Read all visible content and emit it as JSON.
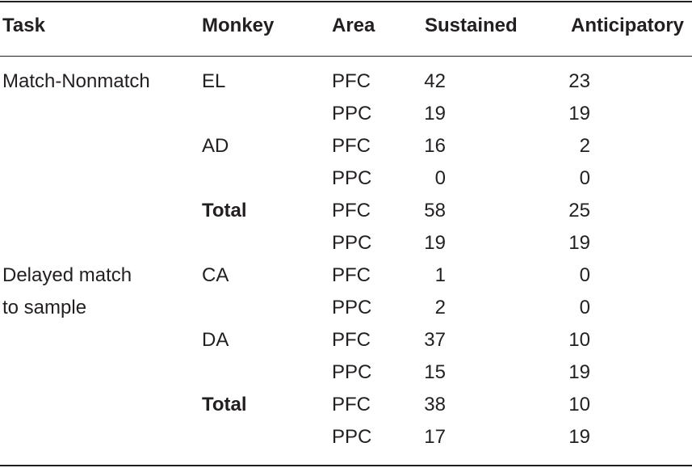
{
  "headers": {
    "task": "Task",
    "monkey": "Monkey",
    "area": "Area",
    "sustained": "Sustained",
    "anticipatory": "Anticipatory"
  },
  "tasks": [
    {
      "line1": "Match-Nonmatch",
      "line2": ""
    },
    {
      "line1": "Delayed match",
      "line2": "to sample"
    }
  ],
  "rows": [
    {
      "task": 0,
      "monkey": "EL",
      "bold": false,
      "area": "PFC",
      "sustained": "42",
      "anticipatory": "23"
    },
    {
      "task": 0,
      "monkey": "",
      "bold": false,
      "area": "PPC",
      "sustained": "19",
      "anticipatory": "19"
    },
    {
      "task": 0,
      "monkey": "AD",
      "bold": false,
      "area": "PFC",
      "sustained": "16",
      "anticipatory": "2"
    },
    {
      "task": 0,
      "monkey": "",
      "bold": false,
      "area": "PPC",
      "sustained": "0",
      "anticipatory": "0"
    },
    {
      "task": 0,
      "monkey": "Total",
      "bold": true,
      "area": "PFC",
      "sustained": "58",
      "anticipatory": "25"
    },
    {
      "task": 0,
      "monkey": "",
      "bold": false,
      "area": "PPC",
      "sustained": "19",
      "anticipatory": "19"
    },
    {
      "task": 1,
      "monkey": "CA",
      "bold": false,
      "area": "PFC",
      "sustained": "1",
      "anticipatory": "0"
    },
    {
      "task": 1,
      "monkey": "",
      "bold": false,
      "area": "PPC",
      "sustained": "2",
      "anticipatory": "0"
    },
    {
      "task": 1,
      "monkey": "DA",
      "bold": false,
      "area": "PFC",
      "sustained": "37",
      "anticipatory": "10"
    },
    {
      "task": 1,
      "monkey": "",
      "bold": false,
      "area": "PPC",
      "sustained": "15",
      "anticipatory": "19"
    },
    {
      "task": 1,
      "monkey": "Total",
      "bold": true,
      "area": "PFC",
      "sustained": "38",
      "anticipatory": "10"
    },
    {
      "task": 1,
      "monkey": "",
      "bold": false,
      "area": "PPC",
      "sustained": "17",
      "anticipatory": "19"
    }
  ]
}
